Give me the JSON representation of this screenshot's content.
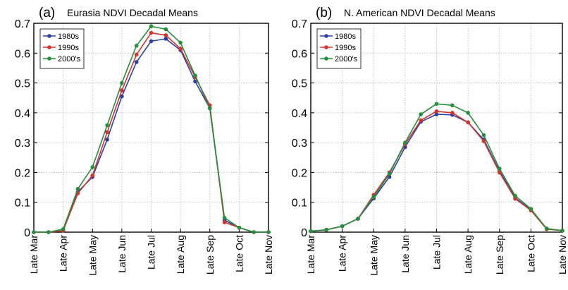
{
  "chart_data": [
    {
      "type": "line",
      "panel_label": "(a)",
      "title": "Eurasia NDVI Decadal Means",
      "ylim": [
        0,
        0.7
      ],
      "yticks": [
        "0",
        "0.1",
        "0.2",
        "0.3",
        "0.4",
        "0.5",
        "0.6",
        "0.7"
      ],
      "x": [
        0,
        1,
        2,
        3,
        4,
        5,
        6,
        7,
        8,
        9,
        10,
        11,
        12,
        13,
        14,
        15,
        16
      ],
      "xtick_positions": [
        0,
        2,
        4,
        6,
        8,
        10,
        12,
        14,
        16
      ],
      "xtick_labels": [
        "Late Mar",
        "Late Apr",
        "Late May",
        "Late Jun",
        "Late Jul",
        "Late Aug",
        "Late Sep",
        "Late Oct",
        "Late Nov"
      ],
      "grid": true,
      "legend": "top-left",
      "series": [
        {
          "name": "1980s",
          "color": "#2b3fa8",
          "values": [
            0.0,
            0.0,
            0.005,
            0.135,
            0.185,
            0.31,
            0.455,
            0.57,
            0.64,
            0.648,
            0.61,
            0.505,
            0.415,
            0.04,
            0.015,
            0.0,
            0.0
          ]
        },
        {
          "name": "1990s",
          "color": "#d8312a",
          "values": [
            0.0,
            0.0,
            0.005,
            0.13,
            0.19,
            0.335,
            0.475,
            0.595,
            0.668,
            0.66,
            0.615,
            0.52,
            0.425,
            0.033,
            0.015,
            0.0,
            0.0
          ]
        },
        {
          "name": "2000's",
          "color": "#22913a",
          "values": [
            0.0,
            0.0,
            0.01,
            0.145,
            0.218,
            0.358,
            0.5,
            0.625,
            0.69,
            0.68,
            0.635,
            0.525,
            0.415,
            0.048,
            0.015,
            0.0,
            0.0
          ]
        }
      ]
    },
    {
      "type": "line",
      "panel_label": "(b)",
      "title": "N. American NDVI Decadal Means",
      "ylim": [
        0,
        0.7
      ],
      "yticks": [
        "0",
        "0.1",
        "0.2",
        "0.3",
        "0.4",
        "0.5",
        "0.6",
        "0.7"
      ],
      "x": [
        0,
        1,
        2,
        3,
        4,
        5,
        6,
        7,
        8,
        9,
        10,
        11,
        12,
        13,
        14,
        15,
        16
      ],
      "xtick_positions": [
        0,
        2,
        4,
        6,
        8,
        10,
        12,
        14,
        16
      ],
      "xtick_labels": [
        "Late Mar",
        "Late Apr",
        "Late May",
        "Late Jun",
        "Late Jul",
        "Late Aug",
        "Late Sep",
        "Late Oct",
        "Late Nov"
      ],
      "grid": true,
      "legend": "top-left",
      "series": [
        {
          "name": "1980s",
          "color": "#2b3fa8",
          "values": [
            0.003,
            0.008,
            0.02,
            0.045,
            0.113,
            0.185,
            0.285,
            0.37,
            0.395,
            0.393,
            0.368,
            0.31,
            0.205,
            0.115,
            0.075,
            0.012,
            0.005
          ]
        },
        {
          "name": "1990s",
          "color": "#d8312a",
          "values": [
            0.003,
            0.008,
            0.02,
            0.045,
            0.125,
            0.2,
            0.295,
            0.375,
            0.405,
            0.4,
            0.368,
            0.305,
            0.2,
            0.112,
            0.073,
            0.01,
            0.005
          ]
        },
        {
          "name": "2000's",
          "color": "#22913a",
          "values": [
            0.003,
            0.008,
            0.02,
            0.045,
            0.118,
            0.195,
            0.3,
            0.395,
            0.43,
            0.425,
            0.4,
            0.325,
            0.213,
            0.122,
            0.078,
            0.012,
            0.005
          ]
        }
      ]
    }
  ]
}
